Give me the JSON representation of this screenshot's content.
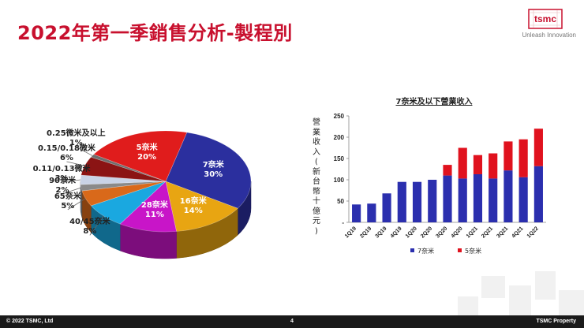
{
  "slide": {
    "title": "2022年第一季銷售分析-製程別",
    "company_tagline": "Unleash Innovation",
    "logo_text": "tsmc"
  },
  "footer": {
    "copyright": "© 2022 TSMC, Ltd",
    "page_number": "4",
    "property": "TSMC Property"
  },
  "chart_data": [
    {
      "type": "pie",
      "slices": [
        {
          "label": "7奈米",
          "percent_text": "30%",
          "value": 30,
          "color": "#2b2f9e",
          "placement": "inside"
        },
        {
          "label": "16奈米",
          "percent_text": "14%",
          "value": 14,
          "color": "#e8a512",
          "placement": "inside"
        },
        {
          "label": "28奈米",
          "percent_text": "11%",
          "value": 11,
          "color": "#c815c8",
          "placement": "inside"
        },
        {
          "label": "40/45奈米",
          "percent_text": "8%",
          "value": 8,
          "color": "#1aa8e0",
          "placement": "outside"
        },
        {
          "label": "65奈米",
          "percent_text": "5%",
          "value": 5,
          "color": "#d9691a",
          "placement": "outside"
        },
        {
          "label": "90奈米",
          "percent_text": "2%",
          "value": 2,
          "color": "#8a8a8a",
          "placement": "outside"
        },
        {
          "label": "0.11/0.13微米",
          "percent_text": "3%",
          "value": 3,
          "color": "#c9d3e6",
          "placement": "outside"
        },
        {
          "label": "0.15/0.18微米",
          "percent_text": "6%",
          "value": 6,
          "color": "#8b1414",
          "placement": "outside"
        },
        {
          "label": "0.25微米及以上",
          "percent_text": "1%",
          "value": 1,
          "color": "#6e6e6e",
          "placement": "outside"
        },
        {
          "label": "5奈米",
          "percent_text": "20%",
          "value": 20,
          "color": "#e01c1c",
          "placement": "inside"
        }
      ]
    },
    {
      "type": "bar",
      "title": "7奈米及以下營業收入",
      "ylabel": "營業收入(新台幣十億元)",
      "ylim": [
        0,
        250
      ],
      "yticks": [
        "-",
        "50",
        "100",
        "150",
        "200",
        "250"
      ],
      "categories": [
        "1Q19",
        "2Q19",
        "3Q19",
        "4Q19",
        "1Q20",
        "2Q20",
        "3Q20",
        "4Q20",
        "1Q21",
        "2Q21",
        "3Q21",
        "4Q21",
        "1Q22"
      ],
      "series": [
        {
          "name": "7奈米",
          "color": "#2b2fae",
          "values": [
            42,
            44,
            68,
            95,
            95,
            100,
            110,
            103,
            113,
            103,
            122,
            106,
            132
          ]
        },
        {
          "name": "5奈米",
          "color": "#e0121e",
          "values": [
            0,
            0,
            0,
            0,
            0,
            0,
            25,
            72,
            45,
            59,
            68,
            89,
            88
          ]
        }
      ]
    }
  ]
}
